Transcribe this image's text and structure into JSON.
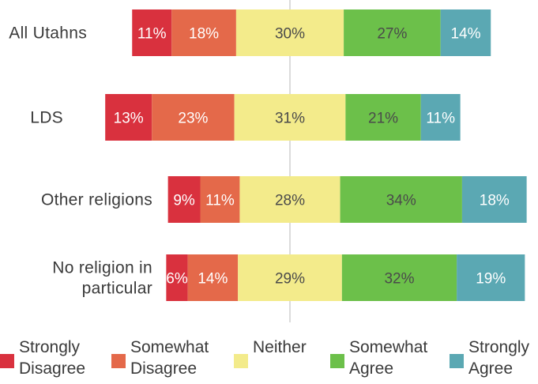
{
  "chart_data": {
    "type": "bar",
    "orientation": "horizontal",
    "stacked": "diverging",
    "categories": [
      "All Utahns",
      "LDS",
      "Other religions",
      "No religion in particular"
    ],
    "category_lines": [
      [
        "All Utahns"
      ],
      [
        "LDS"
      ],
      [
        "Other religions"
      ],
      [
        "No religion in",
        "particular"
      ]
    ],
    "series": [
      {
        "name": "Strongly Disagree",
        "color": "#d9313e",
        "values": [
          11,
          13,
          9,
          6
        ]
      },
      {
        "name": "Somewhat Disagree",
        "color": "#e4694a",
        "values": [
          18,
          23,
          11,
          14
        ]
      },
      {
        "name": "Neither",
        "color": "#f3eb8b",
        "values": [
          30,
          31,
          28,
          29
        ]
      },
      {
        "name": "Somewhat Agree",
        "color": "#6cc04a",
        "values": [
          27,
          21,
          34,
          32
        ]
      },
      {
        "name": "Strongly Agree",
        "color": "#5ba8b3",
        "values": [
          14,
          11,
          18,
          19
        ]
      }
    ],
    "value_labels": [
      [
        "11%",
        "18%",
        "30%",
        "27%",
        "14%"
      ],
      [
        "13%",
        "23%",
        "31%",
        "21%",
        "11%"
      ],
      [
        "9%",
        "11%",
        "28%",
        "34%",
        "18%"
      ],
      [
        "6%",
        "14%",
        "29%",
        "32%",
        "19%"
      ]
    ],
    "center_line": "midpoint of Neither",
    "legend_position": "bottom",
    "grid": false
  },
  "legend": [
    {
      "label": "Strongly\nDisagree",
      "color": "#d9313e"
    },
    {
      "label": "Somewhat\nDisagree",
      "color": "#e4694a"
    },
    {
      "label": "Neither",
      "color": "#f3eb8b"
    },
    {
      "label": "Somewhat\nAgree",
      "color": "#6cc04a"
    },
    {
      "label": "Strongly\nAgree",
      "color": "#5ba8b3"
    }
  ]
}
